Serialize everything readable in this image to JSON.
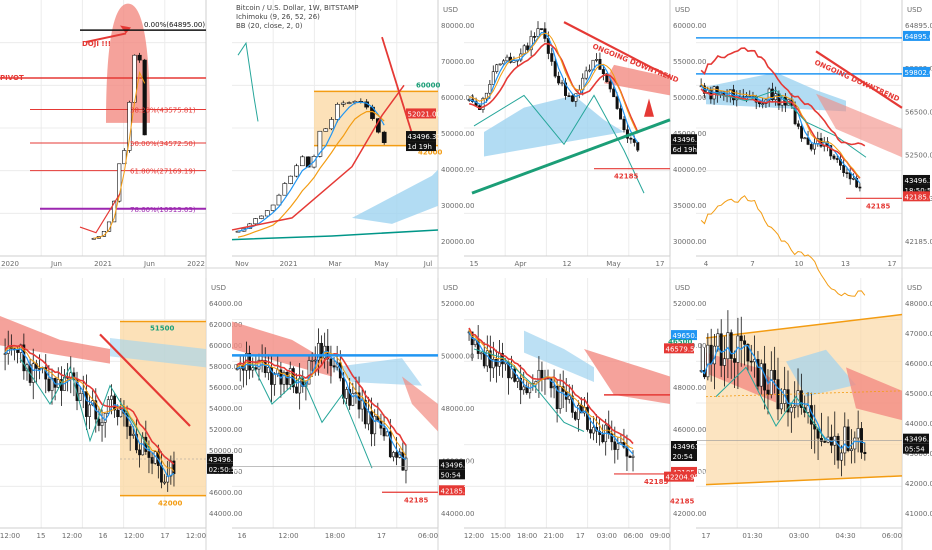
{
  "colors": {
    "up": "#ffffff",
    "down": "#111111",
    "red": "#e53935",
    "orange": "#f39c12",
    "blue": "#2196f3",
    "teal": "#26a69a",
    "green": "#1b9e77",
    "cloud_red": "#f28b82",
    "cloud_blue": "#9fd3f0",
    "zone": "#fbd9a6",
    "purple": "#9c27b0",
    "grid": "#ececec"
  },
  "panels": [
    {
      "id": "p1",
      "x_ticks": [
        "2020",
        "Jun",
        "2021",
        "Jun",
        "2022"
      ],
      "y_ticks": [],
      "labels": [
        {
          "text": "DOJI !!!",
          "color": "#e53935"
        },
        {
          "text": "0.00%(64895.00)",
          "color": "#111111"
        },
        {
          "text": "PIVOT",
          "color": "#e53935"
        },
        {
          "text": "38.20%(43575.81)",
          "color": "#e53935"
        },
        {
          "text": "50.00%(34572.50)",
          "color": "#e53935"
        },
        {
          "text": "61.80%(27169.19)",
          "color": "#e53935"
        },
        {
          "text": "78.60%(16913.63)",
          "color": "#9c27b0"
        }
      ],
      "badges": []
    },
    {
      "id": "p2",
      "header": [
        "Bitcoin / U.S. Dollar, 1W, BITSTAMP",
        "Ichimoku (9, 26, 52, 26)",
        "BB (20, close, 2, 0)"
      ],
      "currency": "USD",
      "x_ticks": [
        "Nov",
        "2021",
        "Mar",
        "May",
        "Jul"
      ],
      "y_ticks": [
        "80000.00",
        "70000.00",
        "60000.00",
        "50000.00",
        "40000.00",
        "30000.00",
        "20000.00"
      ],
      "labels": [
        {
          "text": "60000",
          "color": "#1b9e77"
        },
        {
          "text": "42000",
          "color": "#f39c12"
        }
      ],
      "badges": [
        {
          "text": "52021.00",
          "bg": "#e53935",
          "fg": "#ffffff"
        },
        {
          "text": "43496.31",
          "bg": "#111111",
          "fg": "#ffffff"
        },
        {
          "text": "1d 19h",
          "bg": "#111111",
          "fg": "#ffffff"
        }
      ]
    },
    {
      "id": "p3",
      "currency": "USD",
      "x_ticks": [
        "15",
        "Apr",
        "12",
        "May",
        "17"
      ],
      "y_ticks": [
        "60000.00",
        "55000.00",
        "50000.00",
        "45000.00",
        "40000.00",
        "35000.00",
        "30000.00"
      ],
      "labels": [
        {
          "text": "ONGOING DOWNTREND",
          "color": "#e53935"
        },
        {
          "text": "42185",
          "color": "#e53935"
        }
      ],
      "badges": [
        {
          "text": "43496.31",
          "bg": "#111111",
          "fg": "#ffffff"
        },
        {
          "text": "6d 19h",
          "bg": "#111111",
          "fg": "#ffffff"
        }
      ]
    },
    {
      "id": "p4",
      "currency": "USD",
      "x_ticks": [
        "4",
        "7",
        "10",
        "13",
        "17"
      ],
      "y_ticks": [
        "64895.00",
        "59802.00",
        "56500.00",
        "52500.00",
        "43496.31",
        "42185.00"
      ],
      "labels": [
        {
          "text": "ONGOING DOWNTREND",
          "color": "#e53935"
        },
        {
          "text": "42185",
          "color": "#e53935"
        }
      ],
      "badges": [
        {
          "text": "64895.00",
          "bg": "#2196f3",
          "fg": "#ffffff"
        },
        {
          "text": "59802.00",
          "bg": "#2196f3",
          "fg": "#ffffff"
        },
        {
          "text": "43496.31",
          "bg": "#111111",
          "fg": "#ffffff"
        },
        {
          "text": "18:50:54",
          "bg": "#111111",
          "fg": "#ffffff"
        },
        {
          "text": "42185.00",
          "bg": "#e53935",
          "fg": "#ffffff"
        }
      ]
    },
    {
      "id": "p5",
      "currency": "USD",
      "x_ticks": [
        "12:00",
        "15",
        "12:00",
        "16",
        "12:00",
        "17",
        "12:00"
      ],
      "y_ticks": [
        "64000.00",
        "62000.00",
        "60000.00",
        "58000.00",
        "56000.00",
        "54000.00",
        "52000.00",
        "50000.00",
        "48000.00",
        "46000.00",
        "44000.00"
      ],
      "labels": [
        {
          "text": "51500",
          "color": "#1b9e77"
        },
        {
          "text": "42000",
          "color": "#f39c12"
        }
      ],
      "badges": [
        {
          "text": "43496.31",
          "bg": "#111111",
          "fg": "#ffffff"
        },
        {
          "text": "02:50:54",
          "bg": "#111111",
          "fg": "#ffffff"
        }
      ]
    },
    {
      "id": "p6",
      "currency": "USD",
      "x_ticks": [
        "16",
        "12:00",
        "18:00",
        "17",
        "06:00"
      ],
      "y_ticks": [
        "52000.00",
        "50000.00",
        "48000.00",
        "46000.00",
        "44000.00"
      ],
      "labels": [
        {
          "text": "42185",
          "color": "#e53935"
        }
      ],
      "badges": [
        {
          "text": "43496.31",
          "bg": "#111111",
          "fg": "#ffffff"
        },
        {
          "text": "50:54",
          "bg": "#111111",
          "fg": "#ffffff"
        },
        {
          "text": "42185.00",
          "bg": "#e53935",
          "fg": "#ffffff"
        }
      ]
    },
    {
      "id": "p7",
      "currency": "USD",
      "x_ticks": [
        "12:00",
        "15:00",
        "18:00",
        "21:00",
        "17",
        "03:00",
        "06:00",
        "09:00"
      ],
      "y_ticks": [
        "52000.00",
        "50000.00",
        "48000.00",
        "46000.00",
        "44000.00",
        "42000.00"
      ],
      "labels": [
        {
          "text": "42185",
          "color": "#e53935"
        }
      ],
      "badges": [
        {
          "text": "49650.00",
          "bg": "#2196f3",
          "fg": "#ffffff"
        },
        {
          "text": "43496.31",
          "bg": "#111111",
          "fg": "#ffffff"
        },
        {
          "text": "20:54",
          "bg": "#111111",
          "fg": "#ffffff"
        },
        {
          "text": "42185.00",
          "bg": "#e53935",
          "fg": "#ffffff"
        }
      ]
    },
    {
      "id": "p8",
      "currency": "USD",
      "x_ticks": [
        "17",
        "01:30",
        "03:00",
        "04:30",
        "06:00"
      ],
      "y_ticks": [
        "48000.00",
        "47000.00",
        "46000.00",
        "45000.00",
        "44000.00",
        "43000.00",
        "42000.00",
        "41000.00"
      ],
      "labels": [
        {
          "text": "46500",
          "color": "#1b9e77"
        },
        {
          "text": "42185",
          "color": "#e53935"
        }
      ],
      "badges": [
        {
          "text": "46579.56",
          "bg": "#e53935",
          "fg": "#ffffff"
        },
        {
          "text": "43496.31",
          "bg": "#111111",
          "fg": "#ffffff"
        },
        {
          "text": "05:54",
          "bg": "#111111",
          "fg": "#ffffff"
        },
        {
          "text": "42204.98",
          "bg": "#e53935",
          "fg": "#ffffff"
        }
      ]
    }
  ],
  "chart_data": [
    {
      "type": "line",
      "timeframe": "1M",
      "candles_close": [
        9000,
        9500,
        11000,
        13500,
        19000,
        29000,
        33000,
        45000,
        58000,
        57000,
        37000
      ],
      "levels": [
        64895,
        52021,
        43575.81,
        34572.5,
        27169.19,
        16913.63
      ]
    },
    {
      "type": "line",
      "title": "Bitcoin / U.S. Dollar, 1W, BITSTAMP",
      "candles_close": [
        13500,
        15000,
        18000,
        19500,
        23000,
        29000,
        33000,
        38000,
        34000,
        47000,
        49000,
        57000,
        55000,
        58000,
        56000,
        49000,
        43496
      ],
      "levels": [
        60000,
        42000
      ]
    },
    {
      "type": "line",
      "timeframe": "1D",
      "candles_close": [
        52000,
        50000,
        54000,
        58000,
        57000,
        59000,
        61000,
        63000,
        56000,
        53000,
        51000,
        56000,
        57500,
        54000,
        50000,
        45000,
        43496
      ],
      "levels": [
        42185
      ]
    },
    {
      "type": "line",
      "timeframe": "4H",
      "candles_close": [
        58000,
        57000,
        57500,
        56800,
        57200,
        56500,
        55900,
        57000,
        56000,
        55500,
        51000,
        49800,
        50200,
        48800,
        47000,
        45000,
        43496
      ],
      "levels": [
        64895,
        59802,
        42185
      ]
    },
    {
      "type": "line",
      "timeframe": "1H",
      "candles_close": [
        50500,
        50000,
        48700,
        49200,
        47800,
        48400,
        47500,
        46800,
        46000,
        47000,
        45900,
        45000,
        44300,
        43200,
        43496
      ],
      "levels": [
        51500,
        42000
      ]
    },
    {
      "type": "line",
      "timeframe": "30m",
      "candles_close": [
        49300,
        49500,
        48800,
        48000,
        48600,
        48200,
        49000,
        49800,
        48900,
        47700,
        47000,
        46000,
        45300,
        44200,
        43496
      ],
      "levels": [
        49650,
        42185
      ]
    },
    {
      "type": "line",
      "timeframe": "15m",
      "candles_close": [
        49600,
        48800,
        48200,
        47700,
        47200,
        47500,
        46600,
        46100,
        45500,
        44800,
        44300,
        43900,
        43496
      ],
      "levels": [
        46500,
        42185
      ]
    },
    {
      "type": "line",
      "timeframe": "5m",
      "candles_close": [
        46200,
        46500,
        46800,
        46300,
        45800,
        45300,
        44900,
        44400,
        44000,
        43500,
        43300,
        43496
      ],
      "levels": [
        46579.56,
        43496.31,
        42204.98
      ]
    }
  ]
}
